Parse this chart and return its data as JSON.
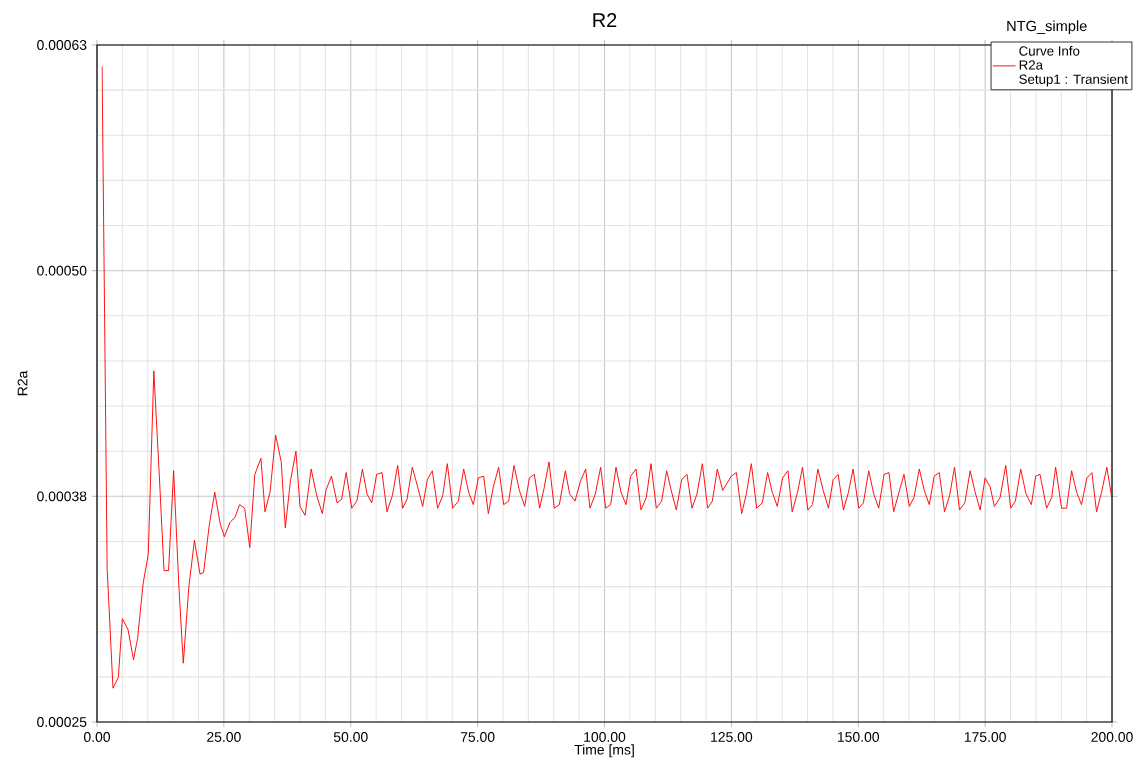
{
  "chart_data": {
    "type": "line",
    "title": "R2",
    "xlabel": "Time [ms]",
    "ylabel": "R2a",
    "legend_title": "Curve Info",
    "annotations": [
      "NTG_simple",
      "Setup1 : Transient"
    ],
    "xlim": [
      0,
      200
    ],
    "ylim": [
      0.00025,
      0.00063
    ],
    "xticks": [
      {
        "value": 0,
        "label": "0.00"
      },
      {
        "value": 25,
        "label": "25.00"
      },
      {
        "value": 50,
        "label": "50.00"
      },
      {
        "value": 75,
        "label": "75.00"
      },
      {
        "value": 100,
        "label": "100.00"
      },
      {
        "value": 125,
        "label": "125.00"
      },
      {
        "value": 150,
        "label": "150.00"
      },
      {
        "value": 175,
        "label": "175.00"
      },
      {
        "value": 200,
        "label": "200.00"
      }
    ],
    "yticks": [
      {
        "value": 0.00025,
        "label": "0.00025"
      },
      {
        "value": 0.000376667,
        "label": "0.00038"
      },
      {
        "value": 0.000503333,
        "label": "0.00050"
      },
      {
        "value": 0.00063,
        "label": "0.00063"
      }
    ],
    "grid": true,
    "legend": "top right",
    "marker": "none",
    "line_style": "solid",
    "series": [
      {
        "name": "R2a",
        "color": "#ff0000",
        "x": [
          1.0,
          2.0,
          3.15,
          4.2,
          5.0,
          6.1,
          7.2,
          8.0,
          9.1,
          10.1,
          11.2,
          12.3,
          13.2,
          14.1,
          15.1,
          16.1,
          17.0,
          18.1,
          19.2,
          20.3,
          21.0,
          22.1,
          23.2,
          24.3,
          25.1,
          26.2,
          27.2,
          28.1,
          29.1,
          30.1,
          31.1,
          32.3,
          33.1,
          34.1,
          35.2,
          36.3,
          37.1,
          38.1,
          39.2,
          40.0,
          41.0,
          42.2,
          43.3,
          44.4,
          45.1,
          46.2,
          47.3,
          48.2,
          49.1,
          50.2,
          51.2,
          52.3,
          53.2,
          54.12,
          55.1,
          56.16,
          57.14,
          58.19,
          59.24,
          60.23,
          61.08,
          62.13,
          63.18,
          64.17,
          65.09,
          66.07,
          67.12,
          68.11,
          69.03,
          70.08,
          71.2,
          72.25,
          73.23,
          74.15,
          75.14,
          76.19,
          77.11,
          78.09,
          79.14,
          80.13,
          81.12,
          82.17,
          83.22,
          84.27,
          85.19,
          86.17,
          87.22,
          88.08,
          89.06,
          90.11,
          91.1,
          92.28,
          93.13,
          94.19,
          95.24,
          96.29,
          97.14,
          98.19,
          99.24,
          100.23,
          101.21,
          102.27,
          103.25,
          104.24,
          105.15,
          106.21,
          107.19,
          108.24,
          109.16,
          110.21,
          111.26,
          112.25,
          113.23,
          114.15,
          115.2,
          116.25,
          117.24,
          118.22,
          119.28,
          120.33,
          121.25,
          122.23,
          123.28,
          125.0,
          125.98,
          127.03,
          127.95,
          128.93,
          129.98,
          131.09,
          132.14,
          133.06,
          134.04,
          135.09,
          136.14,
          136.99,
          138.04,
          139.02,
          140.07,
          140.99,
          142.04,
          143.09,
          144.13,
          145.05,
          146.04,
          147.08,
          148.07,
          148.98,
          150.1,
          151.02,
          152.06,
          153.05,
          154.03,
          155.08,
          156.06,
          156.98,
          158.03,
          159.01,
          160.06,
          160.98,
          162.03,
          163.01,
          164.0,
          164.97,
          165.96,
          167.0,
          167.99,
          168.97,
          169.95,
          171.0,
          172.05,
          173.03,
          174.02,
          175.0,
          175.98,
          176.83,
          177.95,
          179.06,
          180.05,
          180.96,
          182.01,
          183.06,
          184.11,
          184.96,
          185.81,
          187.12,
          188.11,
          188.89,
          190.07,
          191.05,
          192.04,
          193.02,
          194.0,
          195.05,
          196.04,
          196.95,
          197.94,
          198.98,
          200.0
        ],
        "values": [
          0.000618,
          0.000336,
          0.000269,
          0.000275,
          0.000308,
          0.000302,
          0.000285,
          0.000297,
          0.000328,
          0.000344,
          0.000447,
          0.000387,
          0.000335,
          0.000335,
          0.000391,
          0.000328,
          0.000283,
          0.000326,
          0.000352,
          0.000333,
          0.000334,
          0.00036,
          0.000379,
          0.000361,
          0.000354,
          0.000362,
          0.000365,
          0.000372,
          0.00037,
          0.000348,
          0.000389,
          0.000398,
          0.000368,
          0.000379,
          0.000411,
          0.000396,
          0.000359,
          0.000385,
          0.000402,
          0.000371,
          0.000366,
          0.000392,
          0.000377,
          0.000367,
          0.00038,
          0.000388,
          0.000373,
          0.000375,
          0.00039,
          0.00037,
          0.000374,
          0.000392,
          0.000378,
          0.000373,
          0.000389,
          0.00039,
          0.000368,
          0.000377,
          0.000394,
          0.00037,
          0.000375,
          0.000393,
          0.000382,
          0.000371,
          0.000386,
          0.000391,
          0.00037,
          0.000377,
          0.000395,
          0.00037,
          0.000374,
          0.000392,
          0.000379,
          0.000372,
          0.000387,
          0.000388,
          0.000367,
          0.000382,
          0.000393,
          0.000372,
          0.000374,
          0.000394,
          0.00038,
          0.000371,
          0.000387,
          0.000389,
          0.00037,
          0.000381,
          0.000396,
          0.00037,
          0.000372,
          0.000391,
          0.000378,
          0.000374,
          0.000385,
          0.000392,
          0.00037,
          0.000378,
          0.000393,
          0.00037,
          0.000372,
          0.000393,
          0.000379,
          0.000372,
          0.000388,
          0.000392,
          0.000369,
          0.000376,
          0.000395,
          0.00037,
          0.000374,
          0.000391,
          0.000379,
          0.000369,
          0.000386,
          0.000389,
          0.00037,
          0.000378,
          0.000395,
          0.00037,
          0.000374,
          0.000392,
          0.00038,
          0.000388,
          0.00039,
          0.000367,
          0.000378,
          0.000395,
          0.00037,
          0.000373,
          0.00039,
          0.000379,
          0.000371,
          0.000387,
          0.000391,
          0.000368,
          0.000379,
          0.000393,
          0.000369,
          0.000372,
          0.000392,
          0.00038,
          0.00037,
          0.000386,
          0.000389,
          0.000369,
          0.000379,
          0.000392,
          0.00037,
          0.000373,
          0.000391,
          0.000378,
          0.00037,
          0.000389,
          0.00039,
          0.000368,
          0.000379,
          0.000389,
          0.000371,
          0.000376,
          0.000392,
          0.00038,
          0.000372,
          0.000388,
          0.00039,
          0.000368,
          0.000377,
          0.000393,
          0.000369,
          0.000373,
          0.000391,
          0.000379,
          0.000369,
          0.000387,
          0.000382,
          0.000371,
          0.000376,
          0.000394,
          0.00037,
          0.000374,
          0.000392,
          0.000378,
          0.000372,
          0.000388,
          0.000389,
          0.00037,
          0.000376,
          0.000393,
          0.00037,
          0.00037,
          0.000391,
          0.000379,
          0.000372,
          0.000387,
          0.00039,
          0.000368,
          0.000379,
          0.000393,
          0.000375
        ]
      }
    ]
  }
}
